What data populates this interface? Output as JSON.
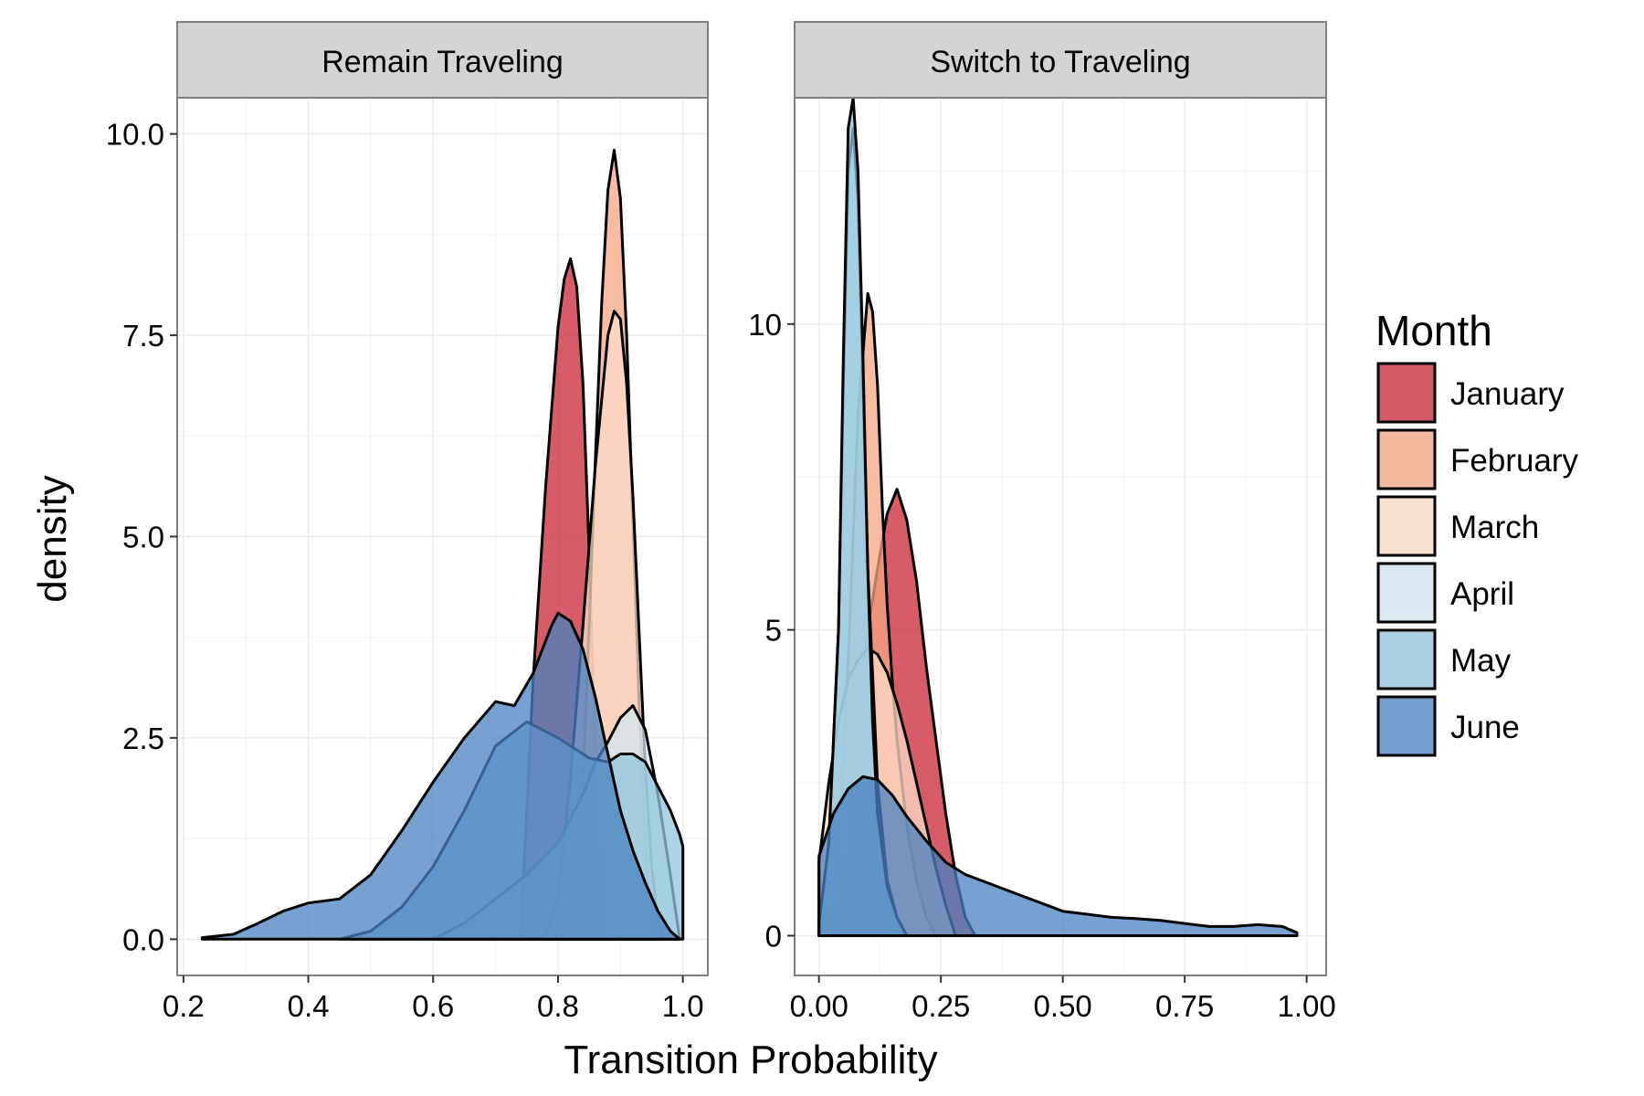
{
  "chart_data": {
    "type": "area",
    "xlabel": "Transition Probability",
    "ylabel": "density",
    "grid": true,
    "legend_position": "right",
    "legend": {
      "title": "Month",
      "entries": [
        "January",
        "February",
        "March",
        "April",
        "May",
        "June"
      ]
    },
    "series_colors": {
      "January": "#ca2536",
      "February": "#f4a583",
      "March": "#fddbc7",
      "April": "#d1e5f0",
      "May": "#92c5de",
      "June": "#4a82c0"
    },
    "fill_alpha": 0.75,
    "panels": [
      {
        "strip": "Remain Traveling",
        "xlim": [
          0.19,
          1.04
        ],
        "ylim": [
          -0.45,
          10.45
        ],
        "xticks": [
          0.2,
          0.4,
          0.6,
          0.8,
          1.0
        ],
        "xtick_labels": [
          "0.2",
          "0.4",
          "0.6",
          "0.8",
          "1.0"
        ],
        "yticks": [
          0.0,
          2.5,
          5.0,
          7.5,
          10.0
        ],
        "ytick_labels": [
          "0.0",
          "2.5",
          "5.0",
          "7.5",
          "10.0"
        ],
        "series": [
          {
            "name": "January",
            "x": [
              0.74,
              0.76,
              0.78,
              0.8,
              0.81,
              0.82,
              0.83,
              0.84,
              0.85,
              0.86,
              0.87,
              0.88
            ],
            "y": [
              0,
              3.2,
              5.6,
              7.6,
              8.2,
              8.45,
              8.1,
              6.9,
              4.8,
              2.2,
              0.6,
              0
            ]
          },
          {
            "name": "February",
            "x": [
              0.8,
              0.82,
              0.84,
              0.85,
              0.86,
              0.87,
              0.88,
              0.89,
              0.9,
              0.91,
              0.92,
              0.93,
              0.94,
              0.95,
              0.96
            ],
            "y": [
              0,
              0.3,
              2.0,
              3.9,
              6.0,
              7.9,
              9.3,
              9.8,
              9.2,
              7.5,
              5.2,
              2.9,
              1.2,
              0.3,
              0
            ]
          },
          {
            "name": "March",
            "x": [
              0.78,
              0.8,
              0.82,
              0.84,
              0.86,
              0.88,
              0.89,
              0.9,
              0.91,
              0.92,
              0.93,
              0.94,
              0.95,
              0.96,
              0.97
            ],
            "y": [
              0,
              0.5,
              2.0,
              3.9,
              5.9,
              7.5,
              7.8,
              7.7,
              6.9,
              5.5,
              3.8,
              2.1,
              0.9,
              0.25,
              0
            ]
          },
          {
            "name": "April",
            "x": [
              0.6,
              0.65,
              0.7,
              0.75,
              0.8,
              0.84,
              0.86,
              0.88,
              0.9,
              0.92,
              0.94,
              0.96,
              0.98,
              0.995
            ],
            "y": [
              0,
              0.2,
              0.5,
              0.8,
              1.2,
              1.8,
              2.2,
              2.45,
              2.75,
              2.9,
              2.6,
              1.8,
              0.8,
              0
            ]
          },
          {
            "name": "May",
            "x": [
              0.45,
              0.5,
              0.55,
              0.6,
              0.65,
              0.7,
              0.75,
              0.8,
              0.85,
              0.88,
              0.9,
              0.92,
              0.94,
              0.96,
              0.98,
              0.995,
              1.0,
              1.0
            ],
            "y": [
              0,
              0.1,
              0.4,
              0.9,
              1.6,
              2.4,
              2.7,
              2.5,
              2.25,
              2.2,
              2.3,
              2.3,
              2.2,
              1.9,
              1.6,
              1.3,
              1.15,
              0
            ]
          },
          {
            "name": "June",
            "x": [
              0.23,
              0.28,
              0.32,
              0.36,
              0.4,
              0.45,
              0.5,
              0.55,
              0.6,
              0.65,
              0.7,
              0.73,
              0.76,
              0.79,
              0.8,
              0.82,
              0.84,
              0.86,
              0.88,
              0.9,
              0.92,
              0.94,
              0.96,
              0.98,
              0.995
            ],
            "y": [
              0.02,
              0.06,
              0.2,
              0.35,
              0.45,
              0.5,
              0.8,
              1.35,
              1.95,
              2.5,
              2.95,
              2.9,
              3.3,
              3.9,
              4.05,
              3.95,
              3.6,
              3.0,
              2.3,
              1.6,
              1.1,
              0.7,
              0.35,
              0.1,
              0
            ]
          }
        ]
      },
      {
        "strip": "Switch to Traveling",
        "xlim": [
          -0.05,
          1.04
        ],
        "ylim": [
          -0.65,
          13.7
        ],
        "xticks": [
          0.0,
          0.25,
          0.5,
          0.75,
          1.0
        ],
        "xtick_labels": [
          "0.00",
          "0.25",
          "0.50",
          "0.75",
          "1.00"
        ],
        "yticks": [
          0,
          5,
          10
        ],
        "ytick_labels": [
          "0",
          "5",
          "10"
        ],
        "series": [
          {
            "name": "January",
            "x": [
              0.02,
              0.04,
              0.06,
              0.08,
              0.1,
              0.12,
              0.14,
              0.16,
              0.18,
              0.2,
              0.22,
              0.24,
              0.26,
              0.28,
              0.3,
              0.32
            ],
            "y": [
              0,
              0.3,
              1.5,
              3.5,
              5.0,
              6.0,
              6.9,
              7.3,
              6.8,
              5.8,
              4.4,
              3.2,
              2.0,
              1.0,
              0.3,
              0
            ]
          },
          {
            "name": "February",
            "x": [
              0.02,
              0.04,
              0.06,
              0.08,
              0.1,
              0.11,
              0.12,
              0.13,
              0.14,
              0.15,
              0.16,
              0.18,
              0.2,
              0.22,
              0.24
            ],
            "y": [
              0,
              1.5,
              4.5,
              8.5,
              10.5,
              10.2,
              9.0,
              7.0,
              5.4,
              4.2,
              3.2,
              1.8,
              0.9,
              0.3,
              0
            ]
          },
          {
            "name": "March",
            "x": [
              0.0,
              0.02,
              0.04,
              0.06,
              0.08,
              0.1,
              0.12,
              0.14,
              0.16,
              0.18,
              0.2,
              0.22,
              0.24,
              0.26,
              0.28
            ],
            "y": [
              1.2,
              2.5,
              3.5,
              4.2,
              4.5,
              4.7,
              4.6,
              4.3,
              3.8,
              3.2,
              2.5,
              1.8,
              1.1,
              0.5,
              0
            ]
          },
          {
            "name": "April",
            "x": [
              0.0,
              0.02,
              0.04,
              0.05,
              0.06,
              0.07,
              0.08,
              0.09,
              0.1,
              0.12,
              0.14,
              0.16,
              0.18
            ],
            "y": [
              0.2,
              1.5,
              5.0,
              9.0,
              12.5,
              13.2,
              12.0,
              9.0,
              6.0,
              2.5,
              0.9,
              0.3,
              0
            ]
          },
          {
            "name": "May",
            "x": [
              0.0,
              0.02,
              0.04,
              0.05,
              0.06,
              0.07,
              0.08,
              0.09,
              0.1,
              0.11,
              0.12,
              0.14,
              0.16,
              0.18
            ],
            "y": [
              0.2,
              1.5,
              5.0,
              9.5,
              13.2,
              13.7,
              12.5,
              9.5,
              6.0,
              3.5,
              2.0,
              0.8,
              0.3,
              0
            ]
          },
          {
            "name": "June",
            "x": [
              0.0,
              0.03,
              0.06,
              0.09,
              0.12,
              0.15,
              0.18,
              0.22,
              0.26,
              0.3,
              0.35,
              0.4,
              0.45,
              0.5,
              0.55,
              0.6,
              0.65,
              0.7,
              0.75,
              0.8,
              0.85,
              0.9,
              0.95,
              0.98
            ],
            "y": [
              1.3,
              2.0,
              2.4,
              2.6,
              2.55,
              2.3,
              1.95,
              1.55,
              1.2,
              1.0,
              0.85,
              0.7,
              0.55,
              0.4,
              0.35,
              0.3,
              0.28,
              0.25,
              0.2,
              0.15,
              0.15,
              0.18,
              0.15,
              0.05
            ]
          }
        ]
      }
    ]
  }
}
